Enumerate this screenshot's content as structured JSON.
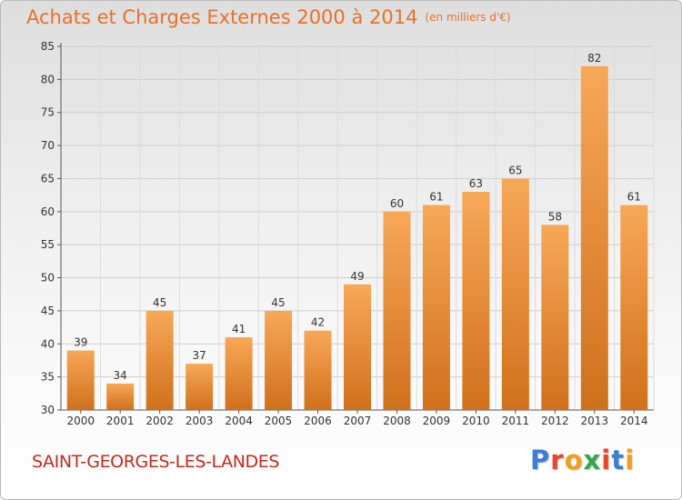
{
  "header": {
    "title": "Achats et Charges Externes 2000 à 2014",
    "subtitle": "(en milliers d'€)"
  },
  "footer": {
    "commune": "SAINT-GEORGES-LES-LANDES",
    "logo": "Proxiti"
  },
  "colors": {
    "bar_top": "#f7a857",
    "bar_bottom": "#d0701c",
    "title": "#e8702a",
    "commune": "#c8281e",
    "logo": [
      "#3a7fd4",
      "#e8452a",
      "#f0a020",
      "#36a84a",
      "#e8452a",
      "#3a7fd4",
      "#f0a020"
    ]
  },
  "chart_data": {
    "type": "bar",
    "title": "Achats et Charges Externes 2000 à 2014",
    "subtitle": "(en milliers d'€)",
    "categories": [
      "2000",
      "2001",
      "2002",
      "2003",
      "2004",
      "2005",
      "2006",
      "2007",
      "2008",
      "2009",
      "2010",
      "2011",
      "2012",
      "2013",
      "2014"
    ],
    "values": [
      39,
      34,
      45,
      37,
      41,
      45,
      42,
      49,
      60,
      61,
      63,
      65,
      58,
      82,
      61
    ],
    "ylim": [
      30,
      85
    ],
    "yticks": [
      30,
      35,
      40,
      45,
      50,
      55,
      60,
      65,
      70,
      75,
      80,
      85
    ],
    "grid": true,
    "legend": "none",
    "data_labels": true
  }
}
